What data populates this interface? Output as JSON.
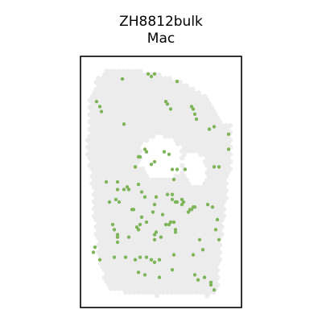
{
  "chart_data": {
    "type": "scatter",
    "title": "ZH8812bulk",
    "subtitle": "Mac",
    "xlabel": "",
    "ylabel": "",
    "xlim": [
      0,
      100
    ],
    "ylim": [
      0,
      100
    ],
    "grid": false,
    "legend": "none",
    "tissue_color": "#ececec",
    "point_color": "#7fb55a",
    "background_color": "#ffffff",
    "series": [
      {
        "x": [
          26,
          42,
          46,
          60,
          44,
          12,
          13,
          10,
          27,
          54,
          53,
          56,
          69,
          70,
          72,
          71,
          80,
          83,
          92,
          92,
          36,
          34,
          46,
          44,
          60,
          55,
          52,
          41,
          37,
          40,
          86,
          83,
          57,
          65,
          58,
          16,
          23,
          23,
          27,
          29,
          36,
          30,
          38,
          40,
          24,
          22,
          18,
          46,
          47,
          54,
          57,
          57,
          59,
          60,
          63,
          64,
          63,
          67,
          68,
          69,
          71,
          70,
          79,
          82,
          58,
          53,
          50,
          33,
          32,
          45,
          51,
          38,
          37,
          41,
          20,
          21,
          23,
          36,
          35,
          56,
          55,
          59,
          59,
          46,
          47,
          46,
          23,
          23,
          21,
          30,
          9,
          8,
          12,
          37,
          34,
          28,
          41,
          44,
          46,
          49,
          58,
          70,
          76,
          74,
          86,
          84,
          85,
          36,
          40,
          49,
          57,
          71,
          73,
          77,
          81,
          81,
          83
        ],
        "y": [
          91,
          93,
          93,
          90,
          92,
          80,
          78,
          82,
          73,
          81,
          82,
          79,
          80,
          79,
          75,
          77,
          71,
          72,
          69,
          63,
          60,
          56,
          58,
          57,
          55,
          61,
          62,
          62,
          60,
          63,
          56,
          56,
          55,
          55,
          51,
          50,
          50,
          47,
          47,
          48,
          49,
          47,
          46,
          44,
          42,
          43,
          42,
          41,
          44,
          45,
          45,
          43,
          42,
          42,
          43,
          42,
          41,
          38,
          39,
          39,
          40,
          40,
          41,
          40,
          34,
          33,
          28,
          39,
          39,
          38,
          37,
          36,
          33,
          34,
          33,
          31,
          29,
          31,
          32,
          34,
          33,
          30,
          31,
          29,
          30,
          27,
          28,
          26,
          20,
          28,
          24,
          22,
          19,
          20,
          19,
          20,
          20,
          19,
          18,
          19,
          21,
          21,
          23,
          27,
          27,
          31,
          35,
          14,
          13,
          12,
          15,
          13,
          11,
          12,
          10,
          9,
          7
        ]
      }
    ]
  }
}
